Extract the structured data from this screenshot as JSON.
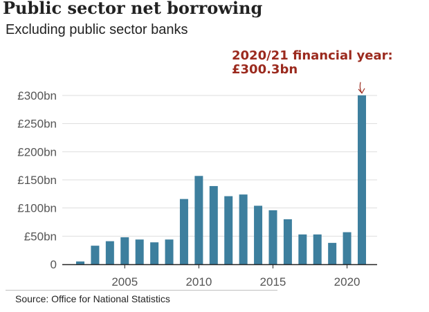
{
  "chart_data": {
    "type": "bar",
    "title": "Public sector net borrowing",
    "subtitle": "Excluding public sector banks",
    "source": "Source: Office for National Statistics",
    "xlabel": "",
    "ylabel": "",
    "x": [
      2002,
      2003,
      2004,
      2005,
      2006,
      2007,
      2008,
      2009,
      2010,
      2011,
      2012,
      2013,
      2014,
      2015,
      2016,
      2017,
      2018,
      2019,
      2020,
      2021
    ],
    "values": [
      5,
      33,
      41,
      48,
      44,
      39,
      44,
      116,
      157,
      139,
      121,
      124,
      104,
      96,
      80,
      53,
      53,
      38,
      57,
      300.3
    ],
    "ylim": [
      0,
      300
    ],
    "y_ticks": [
      {
        "value": 0,
        "label": "0"
      },
      {
        "value": 50,
        "label": "£50bn"
      },
      {
        "value": 100,
        "label": "£100bn"
      },
      {
        "value": 150,
        "label": "£150bn"
      },
      {
        "value": 200,
        "label": "£200bn"
      },
      {
        "value": 250,
        "label": "£250bn"
      },
      {
        "value": 300,
        "label": "£300bn"
      }
    ],
    "x_ticks": [
      {
        "value": 2005,
        "label": "2005"
      },
      {
        "value": 2010,
        "label": "2010"
      },
      {
        "value": 2015,
        "label": "2015"
      },
      {
        "value": 2020,
        "label": "2020"
      }
    ],
    "grid": true,
    "annotation": {
      "lines": [
        "2020/21 financial year:",
        "£300.3bn"
      ],
      "target_x": 2021,
      "target_value": 300.3
    }
  },
  "colors": {
    "bar": "#3d7f9e",
    "annotation": "#9b2a1e",
    "grid": "#dddddd",
    "axis": "#222222",
    "tick_text": "#555555"
  }
}
